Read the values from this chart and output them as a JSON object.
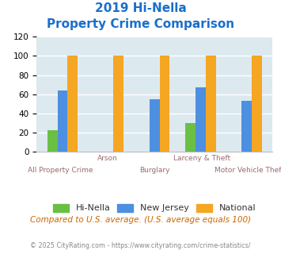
{
  "title_line1": "2019 Hi-Nella",
  "title_line2": "Property Crime Comparison",
  "title_color": "#1a6fcc",
  "categories": [
    "All Property Crime",
    "Arson",
    "Burglary",
    "Larceny & Theft",
    "Motor Vehicle Theft"
  ],
  "hi_nella": [
    23,
    0,
    0,
    30,
    0
  ],
  "new_jersey": [
    64,
    0,
    55,
    67,
    53
  ],
  "national": [
    100,
    100,
    100,
    100,
    100
  ],
  "bar_colors": {
    "hi_nella": "#6abf45",
    "new_jersey": "#4d8fe0",
    "national": "#f5a623"
  },
  "ylim": [
    0,
    120
  ],
  "yticks": [
    0,
    20,
    40,
    60,
    80,
    100,
    120
  ],
  "background_color": "#dce9ef",
  "grid_color": "#ffffff",
  "xlabel_color": "#9b6b6b",
  "legend_labels": [
    "Hi-Nella",
    "New Jersey",
    "National"
  ],
  "footnote1": "Compared to U.S. average. (U.S. average equals 100)",
  "footnote2": "© 2025 CityRating.com - https://www.cityrating.com/crime-statistics/",
  "footnote1_color": "#cc6600",
  "footnote2_color": "#888888",
  "cat_labels_top": [
    "",
    "Arson",
    "",
    "Larceny & Theft",
    ""
  ],
  "cat_labels_bot": [
    "All Property Crime",
    "",
    "Burglary",
    "",
    "Motor Vehicle Theft"
  ]
}
